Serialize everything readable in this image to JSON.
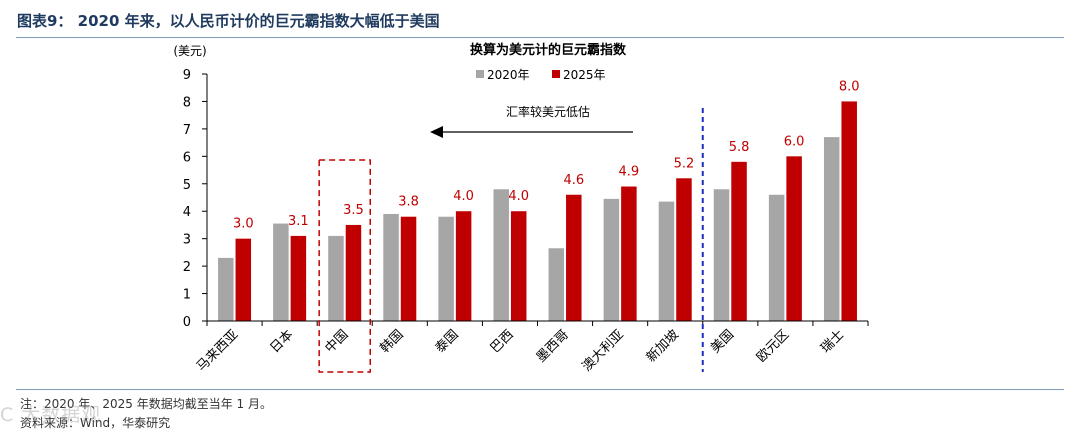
{
  "figure": {
    "title": "图表9： 2020 年来，以人民币计价的巨元霸指数大幅低于美国",
    "note": "注：2020 年、2025 年数据均截至当年 1 月。",
    "source": "资料来源：Wind，华泰研究",
    "watermark": "C 大数据观"
  },
  "chart_data": {
    "type": "bar",
    "title": "换算为美元计的巨元霸指数",
    "ylabel": "(美元)",
    "ylim": [
      0,
      9
    ],
    "yticks": [
      "0",
      "1",
      "2",
      "3",
      "4",
      "5",
      "6",
      "7",
      "8",
      "9"
    ],
    "categories": [
      "马来西亚",
      "日本",
      "中国",
      "韩国",
      "泰国",
      "巴西",
      "墨西哥",
      "澳大利亚",
      "新加坡",
      "美国",
      "欧元区",
      "瑞士"
    ],
    "series": [
      {
        "name": "2020年",
        "color": "#a6a6a6",
        "values": [
          2.3,
          3.55,
          3.1,
          3.9,
          3.8,
          4.8,
          2.65,
          4.45,
          4.35,
          4.8,
          4.6,
          6.7
        ]
      },
      {
        "name": "2025年",
        "color": "#c00000",
        "values": [
          3.0,
          3.1,
          3.5,
          3.8,
          4.0,
          4.0,
          4.6,
          4.9,
          5.2,
          5.8,
          6.0,
          8.0
        ]
      }
    ],
    "data_labels": [
      "3.0",
      "3.1",
      "3.5",
      "3.8",
      "4.0",
      "4.0",
      "4.6",
      "4.9",
      "5.2",
      "5.8",
      "6.0",
      "8.0"
    ],
    "legend_position": "top-center",
    "annotation": "汇率较美元低估",
    "highlight_category": "中国",
    "divider_after_category": "新加坡"
  }
}
